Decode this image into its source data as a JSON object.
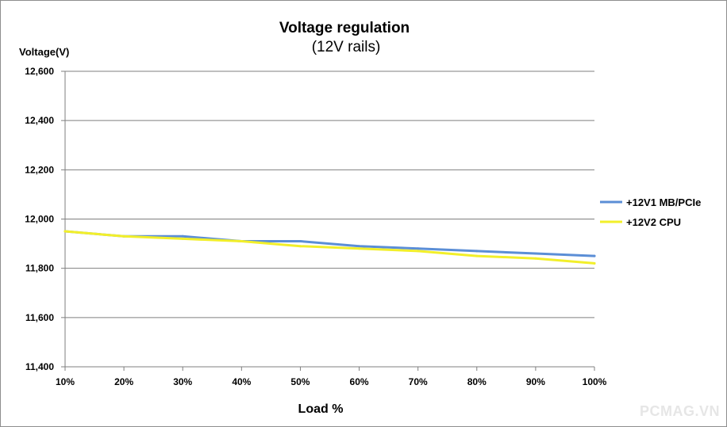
{
  "chart_data": {
    "type": "line",
    "title": "Voltage regulation",
    "subtitle": "(12V rails)",
    "ylabel": "Voltage(V)",
    "xlabel": "Load %",
    "categories": [
      "10%",
      "20%",
      "30%",
      "40%",
      "50%",
      "60%",
      "70%",
      "80%",
      "90%",
      "100%"
    ],
    "yticks": [
      "12,600",
      "12,400",
      "12,200",
      "12,000",
      "11,800",
      "11,600",
      "11,400"
    ],
    "ylim": [
      11.4,
      12.6
    ],
    "grid": true,
    "legend_position": "right",
    "series": [
      {
        "name": "+12V1 MB/PCIe",
        "color": "#5b8ed6",
        "values": [
          11.95,
          11.93,
          11.93,
          11.91,
          11.91,
          11.89,
          11.88,
          11.87,
          11.86,
          11.85
        ]
      },
      {
        "name": "+12V2 CPU",
        "color": "#f2ef2a",
        "values": [
          11.95,
          11.93,
          11.92,
          11.91,
          11.89,
          11.88,
          11.87,
          11.85,
          11.84,
          11.82
        ]
      }
    ]
  },
  "watermark": "PCMAG.VN"
}
